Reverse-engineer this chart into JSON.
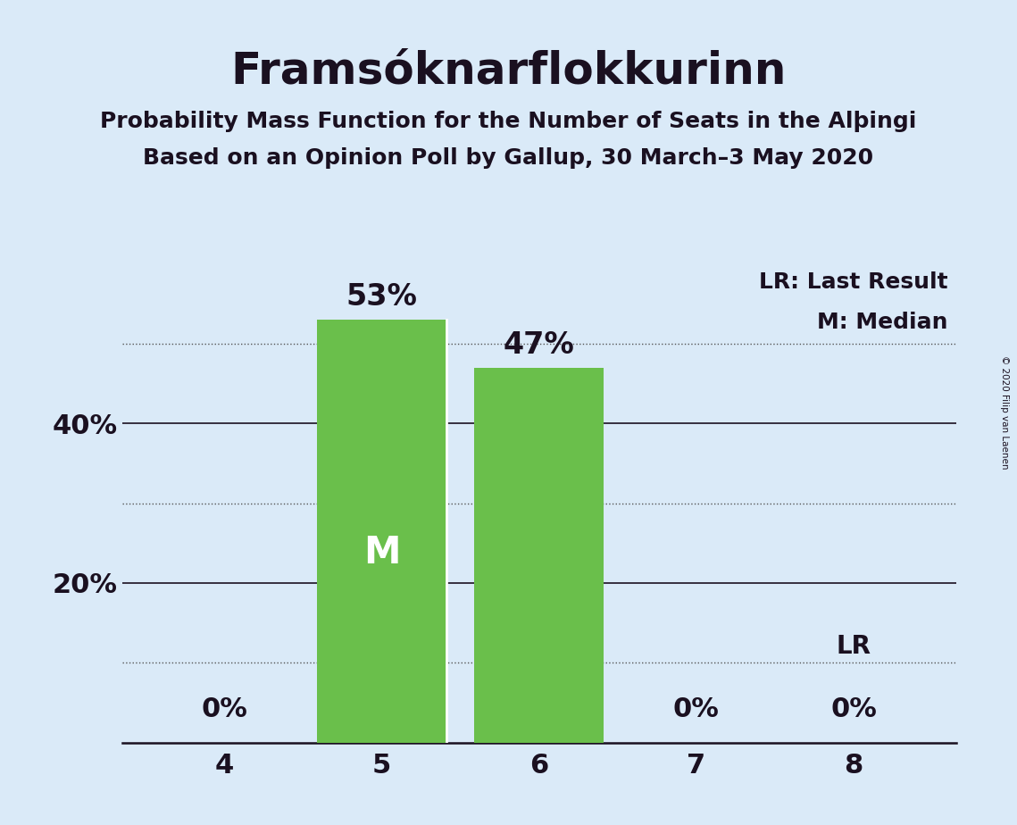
{
  "title": "Framsóknarflokkurinn",
  "subtitle1": "Probability Mass Function for the Number of Seats in the Alþingi",
  "subtitle2": "Based on an Opinion Poll by Gallup, 30 March–3 May 2020",
  "copyright": "© 2020 Filip van Laenen",
  "categories": [
    4,
    5,
    6,
    7,
    8
  ],
  "values": [
    0,
    53,
    47,
    0,
    0
  ],
  "bar_color": "#6abf4b",
  "median_seat": 5,
  "last_result_seat": 8,
  "background_color": "#daeaf8",
  "text_color": "#1a1020",
  "ylim": [
    0,
    60
  ],
  "ytick_major": [
    20,
    40
  ],
  "ytick_minor": [
    10,
    30,
    50
  ],
  "ytick_major_labels": [
    "20%",
    "40%"
  ],
  "legend_lr_text": "LR: Last Result",
  "legend_m_text": "M: Median",
  "title_fontsize": 36,
  "subtitle_fontsize": 18,
  "axis_tick_fontsize": 22,
  "bar_label_fontsize": 24,
  "inside_label_fontsize": 30
}
